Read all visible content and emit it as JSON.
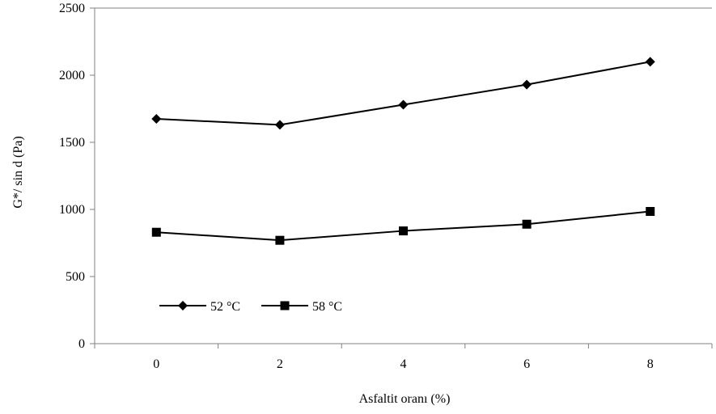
{
  "chart_data": {
    "type": "line",
    "categories": [
      "0",
      "2",
      "4",
      "6",
      "8"
    ],
    "x": [
      0,
      2,
      4,
      6,
      8
    ],
    "series": [
      {
        "name": "52 °C",
        "values": [
          1675,
          1630,
          1780,
          1930,
          2100
        ],
        "marker": "diamond",
        "color": "#000000"
      },
      {
        "name": "58 °C",
        "values": [
          830,
          770,
          840,
          890,
          985
        ],
        "marker": "square",
        "color": "#000000"
      }
    ],
    "title": "",
    "xlabel": "Asfaltit oranı (%)",
    "ylabel": "G*/ sin d (Pa)",
    "ylim": [
      0,
      2500
    ],
    "yticks": [
      0,
      500,
      1000,
      1500,
      2000,
      2500
    ],
    "grid": false,
    "legend_position": "bottom-left"
  }
}
